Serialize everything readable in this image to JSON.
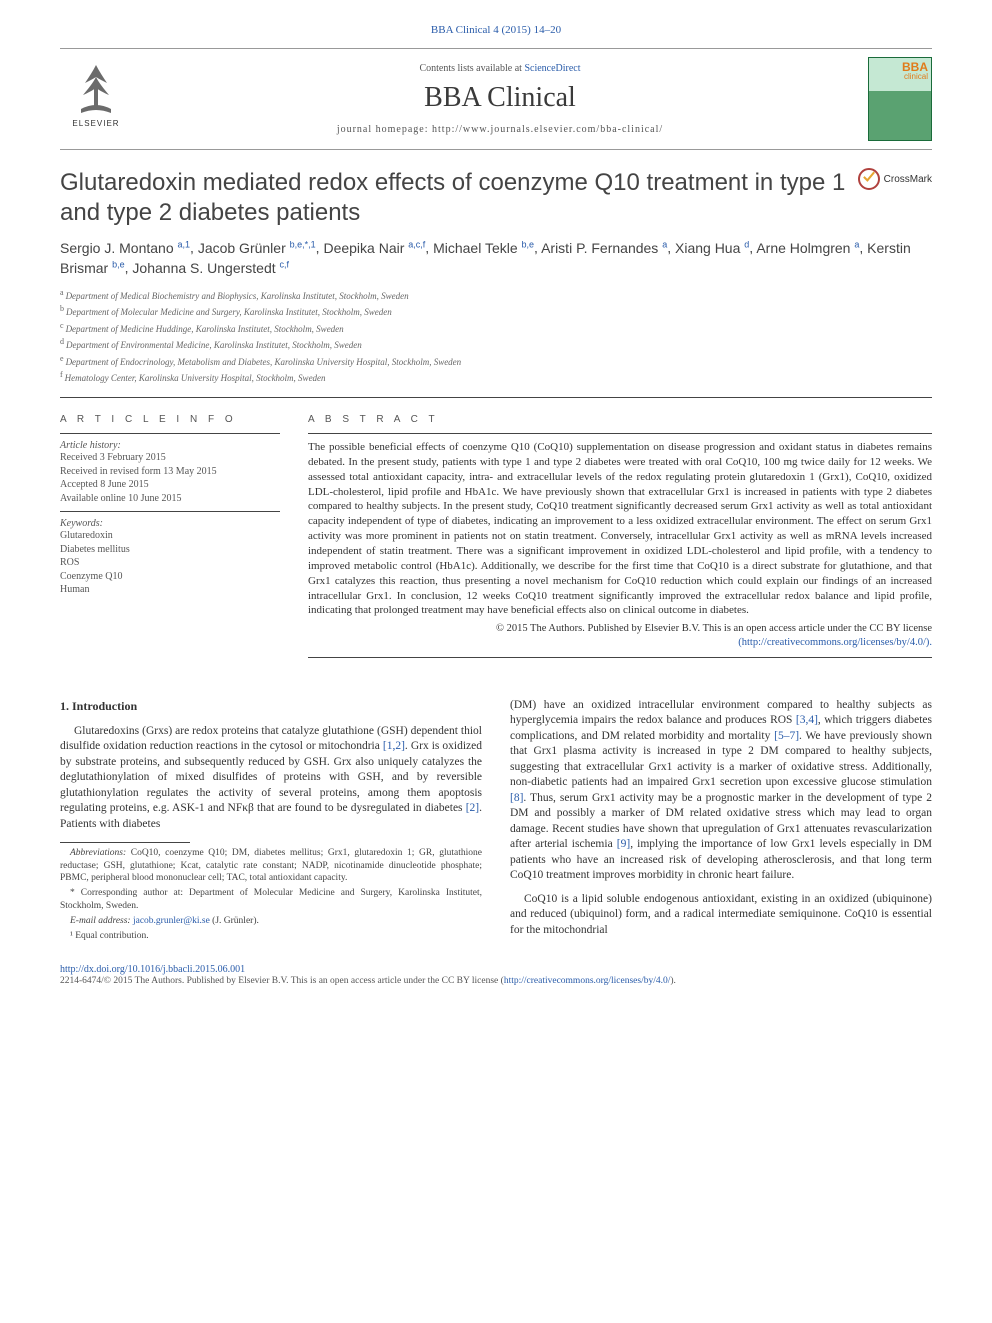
{
  "journal_ref": "BBA Clinical 4 (2015) 14–20",
  "header": {
    "contents_pre": "Contents lists available at ",
    "contents_link": "ScienceDirect",
    "journal_name": "BBA Clinical",
    "homepage_label": "journal homepage: ",
    "homepage_url": "http://www.journals.elsevier.com/bba-clinical/",
    "publisher": "ELSEVIER",
    "cover_label": "BBA",
    "cover_sub": "clinical"
  },
  "crossmark": "CrossMark",
  "title": "Glutaredoxin mediated redox effects of coenzyme Q10 treatment in type 1 and type 2 diabetes patients",
  "authors_html_parts": [
    {
      "name": "Sergio J. Montano",
      "sup": "a,1"
    },
    {
      "name": "Jacob Grünler",
      "sup": "b,e,*,1",
      "corr": true
    },
    {
      "name": "Deepika Nair",
      "sup": "a,c,f"
    },
    {
      "name": "Michael Tekle",
      "sup": "b,e"
    },
    {
      "name": "Aristi P. Fernandes",
      "sup": "a"
    },
    {
      "name": "Xiang Hua",
      "sup": "d"
    },
    {
      "name": "Arne Holmgren",
      "sup": "a"
    },
    {
      "name": "Kerstin Brismar",
      "sup": "b,e"
    },
    {
      "name": "Johanna S. Ungerstedt",
      "sup": "c,f"
    }
  ],
  "affiliations": [
    {
      "key": "a",
      "text": "Department of Medical Biochemistry and Biophysics, Karolinska Institutet, Stockholm, Sweden"
    },
    {
      "key": "b",
      "text": "Department of Molecular Medicine and Surgery, Karolinska Institutet, Stockholm, Sweden"
    },
    {
      "key": "c",
      "text": "Department of Medicine Huddinge, Karolinska Institutet, Stockholm, Sweden"
    },
    {
      "key": "d",
      "text": "Department of Environmental Medicine, Karolinska Institutet, Stockholm, Sweden"
    },
    {
      "key": "e",
      "text": "Department of Endocrinology, Metabolism and Diabetes, Karolinska University Hospital, Stockholm, Sweden"
    },
    {
      "key": "f",
      "text": "Hematology Center, Karolinska University Hospital, Stockholm, Sweden"
    }
  ],
  "info": {
    "head": "A R T I C L E   I N F O",
    "history_label": "Article history:",
    "history": [
      "Received 3 February 2015",
      "Received in revised form 13 May 2015",
      "Accepted 8 June 2015",
      "Available online 10 June 2015"
    ],
    "keywords_label": "Keywords:",
    "keywords": [
      "Glutaredoxin",
      "Diabetes mellitus",
      "ROS",
      "Coenzyme Q10",
      "Human"
    ]
  },
  "abstract": {
    "head": "A B S T R A C T",
    "text": "The possible beneficial effects of coenzyme Q10 (CoQ10) supplementation on disease progression and oxidant status in diabetes remains debated. In the present study, patients with type 1 and type 2 diabetes were treated with oral CoQ10, 100 mg twice daily for 12 weeks. We assessed total antioxidant capacity, intra- and extracellular levels of the redox regulating protein glutaredoxin 1 (Grx1), CoQ10, oxidized LDL-cholesterol, lipid profile and HbA1c. We have previously shown that extracellular Grx1 is increased in patients with type 2 diabetes compared to healthy subjects. In the present study, CoQ10 treatment significantly decreased serum Grx1 activity as well as total antioxidant capacity independent of type of diabetes, indicating an improvement to a less oxidized extracellular environment. The effect on serum Grx1 activity was more prominent in patients not on statin treatment. Conversely, intracellular Grx1 activity as well as mRNA levels increased independent of statin treatment. There was a significant improvement in oxidized LDL-cholesterol and lipid profile, with a tendency to improved metabolic control (HbA1c). Additionally, we describe for the first time that CoQ10 is a direct substrate for glutathione, and that Grx1 catalyzes this reaction, thus presenting a novel mechanism for CoQ10 reduction which could explain our findings of an increased intracellular Grx1. In conclusion, 12 weeks CoQ10 treatment significantly improved the extracellular redox balance and lipid profile, indicating that prolonged treatment may have beneficial effects also on clinical outcome in diabetes.",
    "copyright": "© 2015 The Authors. Published by Elsevier B.V. This is an open access article under the CC BY license",
    "license_url_label": "(http://creativecommons.org/licenses/by/4.0/)."
  },
  "body": {
    "section_heading": "1. Introduction",
    "col1_p1_pre": "Glutaredoxins (Grxs) are redox proteins that catalyze glutathione (GSH) dependent thiol disulfide oxidation reduction reactions in the cytosol or mitochondria ",
    "ref12": "[1,2]",
    "col1_p1_mid": ". Grx is oxidized by substrate proteins, and subsequently reduced by GSH. Grx also uniquely catalyzes the deglutathionylation of mixed disulfides of proteins with GSH, and by reversible glutathionylation regulates the activity of several proteins, among them apoptosis regulating proteins, e.g. ASK-1 and NFκβ that are found to be dysregulated in diabetes ",
    "ref2": "[2]",
    "col1_p1_end": ". Patients with diabetes",
    "col2_p1_pre": "(DM) have an oxidized intracellular environment compared to healthy subjects as hyperglycemia impairs the redox balance and produces ROS ",
    "ref34": "[3,4]",
    "col2_p1_mid1": ", which triggers diabetes complications, and DM related morbidity and mortality ",
    "ref57": "[5–7]",
    "col2_p1_mid2": ". We have previously shown that Grx1 plasma activity is increased in type 2 DM compared to healthy subjects, suggesting that extracellular Grx1 activity is a marker of oxidative stress. Additionally, non-diabetic patients had an impaired Grx1 secretion upon excessive glucose stimulation ",
    "ref8": "[8]",
    "col2_p1_mid3": ". Thus, serum Grx1 activity may be a prognostic marker in the development of type 2 DM and possibly a marker of DM related oxidative stress which may lead to organ damage. Recent studies have shown that upregulation of Grx1 attenuates revascularization after arterial ischemia ",
    "ref9": "[9]",
    "col2_p1_end": ", implying the importance of low Grx1 levels especially in DM patients who have an increased risk of developing atherosclerosis, and that long term CoQ10 treatment improves morbidity in chronic heart failure.",
    "col2_p2": "CoQ10 is a lipid soluble endogenous antioxidant, existing in an oxidized (ubiquinone) and reduced (ubiquinol) form, and a radical intermediate semiquinone. CoQ10 is essential for the mitochondrial"
  },
  "footnotes": {
    "abbrev_label": "Abbreviations:",
    "abbrev_text": " CoQ10, coenzyme Q10; DM, diabetes mellitus; Grx1, glutaredoxin 1; GR, glutathione reductase; GSH, glutathione; Kcat, catalytic rate constant; NADP, nicotinamide dinucleotide phosphate; PBMC, peripheral blood mononuclear cell; TAC, total antioxidant capacity.",
    "corr": "* Corresponding author at: Department of Molecular Medicine and Surgery, Karolinska Institutet, Stockholm, Sweden.",
    "email_label": "E-mail address: ",
    "email": "jacob.grunler@ki.se",
    "email_suffix": " (J. Grünler).",
    "equal": "¹ Equal contribution."
  },
  "footer": {
    "doi": "http://dx.doi.org/10.1016/j.bbacli.2015.06.001",
    "issn_line_pre": "2214-6474/© 2015 The Authors. Published by Elsevier B.V. This is an open access article under the CC BY license (",
    "issn_url": "http://creativecommons.org/licenses/by/4.0/",
    "issn_line_post": ")."
  },
  "colors": {
    "link": "#2a5caa",
    "text": "#333333",
    "muted": "#555555",
    "rule": "#444444"
  }
}
